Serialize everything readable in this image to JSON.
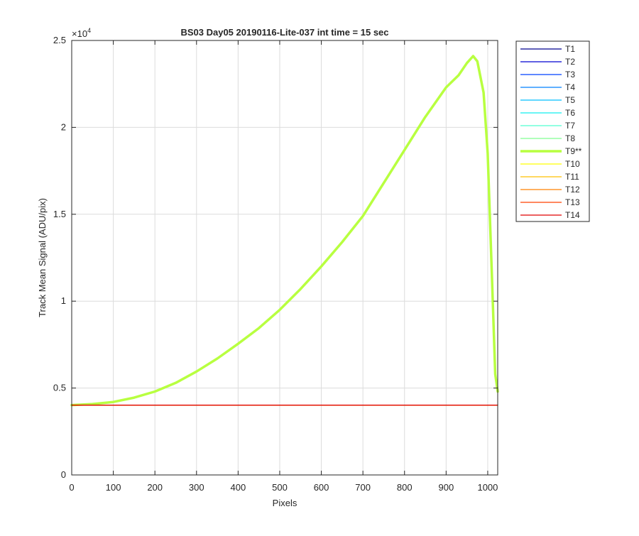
{
  "chart_data": {
    "type": "line",
    "title": "BS03 Day05 20190116-Lite-037 int time = 15 sec",
    "xlabel": "Pixels",
    "ylabel": "Track Mean Signal (ADU/pix)",
    "exponent_label": "×10",
    "exponent_power": "4",
    "xlim": [
      0,
      1024
    ],
    "ylim": [
      0,
      25000
    ],
    "x_ticks": [
      0,
      100,
      200,
      300,
      400,
      500,
      600,
      700,
      800,
      900,
      1000
    ],
    "y_ticks": [
      0,
      5000,
      10000,
      15000,
      20000,
      25000
    ],
    "y_tick_labels": [
      "0",
      "0.5",
      "1",
      "1.5",
      "2",
      "2.5"
    ],
    "grid": true,
    "legend_position": "outside-top-right",
    "series": [
      {
        "name": "T1",
        "color": "#00008f",
        "width": 1.2,
        "x": [
          0,
          1024
        ],
        "y": [
          4020,
          4020
        ]
      },
      {
        "name": "T2",
        "color": "#0000d0",
        "width": 1.2,
        "x": [
          0,
          1024
        ],
        "y": [
          4020,
          4020
        ]
      },
      {
        "name": "T3",
        "color": "#0040ff",
        "width": 1.2,
        "x": [
          0,
          1024
        ],
        "y": [
          4020,
          4020
        ]
      },
      {
        "name": "T4",
        "color": "#0080ff",
        "width": 1.2,
        "x": [
          0,
          1024
        ],
        "y": [
          4020,
          4020
        ]
      },
      {
        "name": "T5",
        "color": "#00bfff",
        "width": 1.2,
        "x": [
          0,
          1024
        ],
        "y": [
          4020,
          4020
        ]
      },
      {
        "name": "T6",
        "color": "#10efef",
        "width": 1.2,
        "x": [
          0,
          1024
        ],
        "y": [
          4020,
          4020
        ]
      },
      {
        "name": "T7",
        "color": "#50ffd0",
        "width": 1.2,
        "x": [
          0,
          1024
        ],
        "y": [
          4020,
          4020
        ]
      },
      {
        "name": "T8",
        "color": "#80ff90",
        "width": 1.2,
        "x": [
          0,
          1024
        ],
        "y": [
          4020,
          4020
        ]
      },
      {
        "name": "T9**",
        "color": "#b8ff40",
        "width": 3.5,
        "x": [
          0,
          50,
          100,
          150,
          200,
          250,
          300,
          350,
          400,
          450,
          500,
          550,
          600,
          650,
          700,
          750,
          800,
          850,
          900,
          930,
          950,
          965,
          975,
          990,
          1000,
          1010,
          1018,
          1024
        ],
        "y": [
          4020,
          4080,
          4200,
          4450,
          4800,
          5300,
          5950,
          6700,
          7550,
          8450,
          9500,
          10700,
          12000,
          13400,
          14900,
          16800,
          18700,
          20600,
          22300,
          23000,
          23700,
          24100,
          23800,
          22000,
          18500,
          11500,
          5800,
          4800
        ]
      },
      {
        "name": "T10",
        "color": "#ffff00",
        "width": 1.2,
        "x": [
          0,
          1024
        ],
        "y": [
          4020,
          4020
        ]
      },
      {
        "name": "T11",
        "color": "#ffc000",
        "width": 1.2,
        "x": [
          0,
          1024
        ],
        "y": [
          4020,
          4020
        ]
      },
      {
        "name": "T12",
        "color": "#ff8000",
        "width": 1.2,
        "x": [
          0,
          1024
        ],
        "y": [
          4020,
          4020
        ]
      },
      {
        "name": "T13",
        "color": "#ff4000",
        "width": 1.2,
        "x": [
          0,
          1024
        ],
        "y": [
          4020,
          4020
        ]
      },
      {
        "name": "T14",
        "color": "#e00000",
        "width": 1.2,
        "x": [
          0,
          1024
        ],
        "y": [
          4020,
          4020
        ]
      }
    ]
  }
}
